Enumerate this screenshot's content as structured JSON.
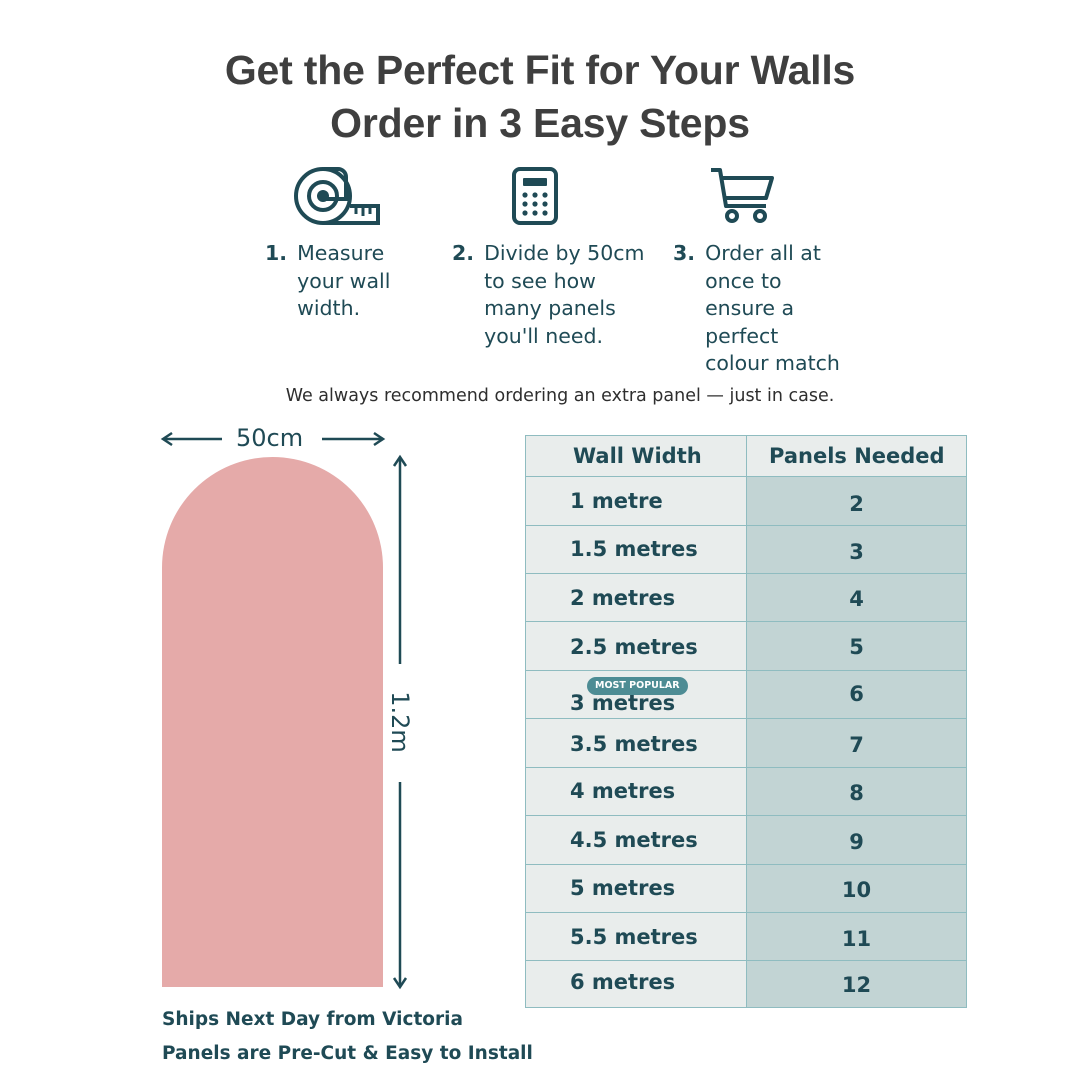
{
  "header": {
    "title_line1": "Get the Perfect Fit for Your Walls",
    "title_line2": "Order in 3 Easy Steps"
  },
  "steps": [
    {
      "number": "1.",
      "text": "Measure\nyour wall\nwidth.",
      "icon": "tape-measure-icon"
    },
    {
      "number": "2.",
      "text": "Divide by 50cm\nto see how\nmany panels\nyou'll need.",
      "icon": "calculator-icon"
    },
    {
      "number": "3.",
      "text": "Order all at\nonce to\nensure a\nperfect\ncolour match",
      "icon": "shopping-cart-icon"
    }
  ],
  "note": "We always recommend ordering an extra panel — just in case.",
  "panel": {
    "width_label": "50cm",
    "height_label": "1.2m",
    "color": "#e5aaa9"
  },
  "table": {
    "headers": [
      "Wall Width",
      "Panels Needed"
    ],
    "rows": [
      {
        "width": "1 metre",
        "panels": "2"
      },
      {
        "width": "1.5 metres",
        "panels": "3"
      },
      {
        "width": "2 metres",
        "panels": "4"
      },
      {
        "width": "2.5 metres",
        "panels": "5"
      },
      {
        "width": "3 metres",
        "panels": "6",
        "badge": "MOST POPULAR"
      },
      {
        "width": "3.5 metres",
        "panels": "7"
      },
      {
        "width": "4 metres",
        "panels": "8"
      },
      {
        "width": "4.5 metres",
        "panels": "9"
      },
      {
        "width": "5 metres",
        "panels": "10"
      },
      {
        "width": "5.5 metres",
        "panels": "11"
      },
      {
        "width": "6 metres",
        "panels": "12"
      }
    ]
  },
  "footer": {
    "line1": "Ships Next Day from Victoria",
    "line2": "Panels are Pre-Cut & Easy to Install"
  },
  "colors": {
    "text_dark_teal": "#1f4a55",
    "title_gray": "#3f3f3f",
    "table_light": "#e9edec",
    "table_teal": "#c2d4d4",
    "badge": "#4d8c94"
  }
}
